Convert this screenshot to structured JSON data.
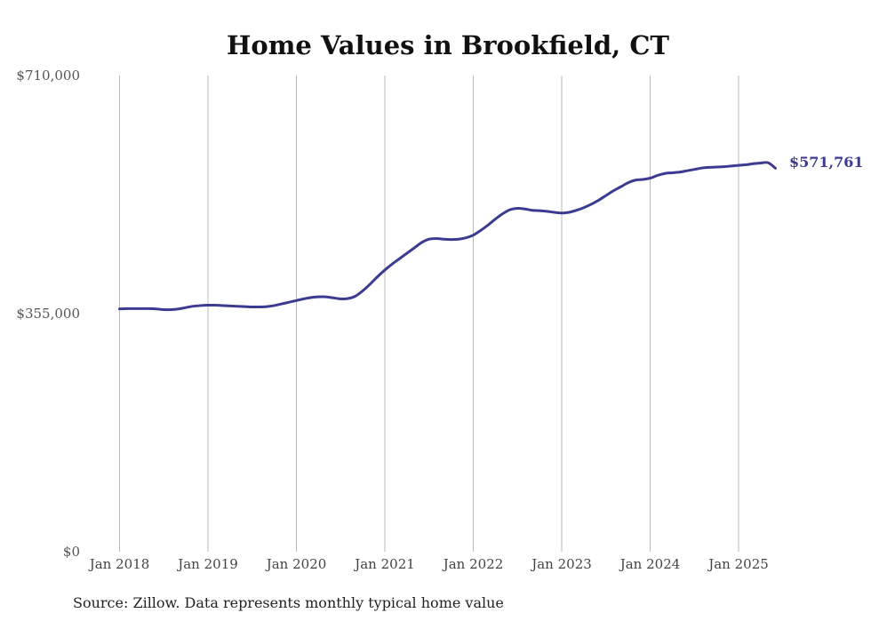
{
  "chart_data": {
    "type": "line",
    "title": "Home Values in Brookfield, CT",
    "source": "Source: Zillow. Data represents monthly typical home value",
    "ylim": [
      0,
      710000
    ],
    "yticks": [
      {
        "value": 0,
        "label": "$0"
      },
      {
        "value": 355000,
        "label": "$355,000"
      },
      {
        "value": 710000,
        "label": "$710,000"
      }
    ],
    "xticks": [
      {
        "value": "2018-01",
        "label": "Jan 2018"
      },
      {
        "value": "2019-01",
        "label": "Jan 2019"
      },
      {
        "value": "2020-01",
        "label": "Jan 2020"
      },
      {
        "value": "2021-01",
        "label": "Jan 2021"
      },
      {
        "value": "2022-01",
        "label": "Jan 2022"
      },
      {
        "value": "2023-01",
        "label": "Jan 2023"
      },
      {
        "value": "2024-01",
        "label": "Jan 2024"
      },
      {
        "value": "2025-01",
        "label": "Jan 2025"
      }
    ],
    "grid": {
      "vertical": true,
      "horizontal": false
    },
    "line_color": "#3b3b91",
    "end_label": "$571,761",
    "series": [
      {
        "x": [
          "2018-01",
          "2018-02",
          "2018-03",
          "2018-04",
          "2018-05",
          "2018-06",
          "2018-07",
          "2018-08",
          "2018-09",
          "2018-10",
          "2018-11",
          "2018-12",
          "2019-01",
          "2019-02",
          "2019-03",
          "2019-04",
          "2019-05",
          "2019-06",
          "2019-07",
          "2019-08",
          "2019-09",
          "2019-10",
          "2019-11",
          "2019-12",
          "2020-01",
          "2020-02",
          "2020-03",
          "2020-04",
          "2020-05",
          "2020-06",
          "2020-07",
          "2020-08",
          "2020-09",
          "2020-10",
          "2020-11",
          "2020-12",
          "2021-01",
          "2021-02",
          "2021-03",
          "2021-04",
          "2021-05",
          "2021-06",
          "2021-07",
          "2021-08",
          "2021-09",
          "2021-10",
          "2021-11",
          "2021-12",
          "2022-01",
          "2022-02",
          "2022-03",
          "2022-04",
          "2022-05",
          "2022-06",
          "2022-07",
          "2022-08",
          "2022-09",
          "2022-10",
          "2022-11",
          "2022-12",
          "2023-01",
          "2023-02",
          "2023-03",
          "2023-04",
          "2023-05",
          "2023-06",
          "2023-07",
          "2023-08",
          "2023-09",
          "2023-10",
          "2023-11",
          "2023-12",
          "2024-01",
          "2024-02",
          "2024-03",
          "2024-04",
          "2024-05",
          "2024-06",
          "2024-07",
          "2024-08",
          "2024-09",
          "2024-10",
          "2024-11",
          "2024-12",
          "2025-01",
          "2025-02",
          "2025-03",
          "2025-04",
          "2025-05",
          "2025-06"
        ],
        "values": [
          362000,
          362500,
          362500,
          362500,
          362500,
          362000,
          361000,
          361000,
          362000,
          364000,
          366000,
          367000,
          367500,
          367500,
          367000,
          366500,
          366000,
          365500,
          365000,
          365000,
          365500,
          367000,
          369500,
          372000,
          374500,
          377000,
          379000,
          380000,
          380000,
          378500,
          377000,
          377500,
          381000,
          389000,
          399000,
          410000,
          420000,
          429000,
          437000,
          445000,
          453000,
          461000,
          466000,
          467000,
          466000,
          465500,
          466000,
          468000,
          472000,
          479000,
          487000,
          496000,
          504000,
          510000,
          512000,
          511000,
          509000,
          508500,
          507500,
          506000,
          505000,
          506000,
          509000,
          513000,
          518000,
          524000,
          531000,
          538000,
          544000,
          550000,
          554000,
          555000,
          557000,
          561000,
          564000,
          565000,
          566000,
          568000,
          570000,
          572000,
          573000,
          573500,
          574000,
          575000,
          576000,
          577000,
          578500,
          579500,
          580000,
          571761
        ]
      }
    ]
  }
}
